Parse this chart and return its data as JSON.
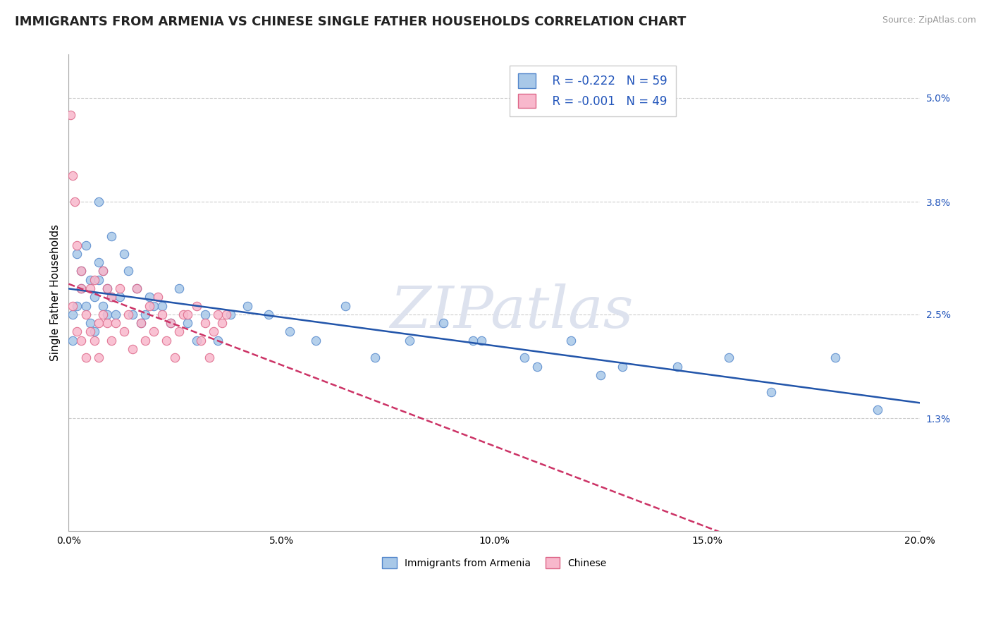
{
  "title": "IMMIGRANTS FROM ARMENIA VS CHINESE SINGLE FATHER HOUSEHOLDS CORRELATION CHART",
  "source": "Source: ZipAtlas.com",
  "ylabel": "Single Father Households",
  "xlim": [
    0.0,
    0.2
  ],
  "ylim": [
    0.0,
    0.055
  ],
  "xticks": [
    0.0,
    0.05,
    0.1,
    0.15,
    0.2
  ],
  "xtick_labels": [
    "0.0%",
    "5.0%",
    "10.0%",
    "15.0%",
    "20.0%"
  ],
  "yticks_right": [
    0.013,
    0.025,
    0.038,
    0.05
  ],
  "ytick_labels_right": [
    "1.3%",
    "2.5%",
    "3.8%",
    "5.0%"
  ],
  "grid_color": "#cccccc",
  "bg_color": "#ffffff",
  "watermark": "ZIPatlas",
  "watermark_color": "#dde2ee",
  "watermark_fontsize": 60,
  "series": [
    {
      "name": "Immigrants from Armenia",
      "color": "#a8c8e8",
      "edge_color": "#5588cc",
      "R": -0.222,
      "N": 59,
      "trend_color": "#2255aa",
      "trend_style": "solid",
      "x": [
        0.001,
        0.001,
        0.002,
        0.002,
        0.003,
        0.003,
        0.004,
        0.004,
        0.005,
        0.005,
        0.006,
        0.006,
        0.007,
        0.007,
        0.007,
        0.008,
        0.008,
        0.009,
        0.009,
        0.01,
        0.01,
        0.011,
        0.012,
        0.013,
        0.014,
        0.015,
        0.016,
        0.017,
        0.018,
        0.019,
        0.02,
        0.022,
        0.024,
        0.026,
        0.028,
        0.03,
        0.032,
        0.035,
        0.038,
        0.042,
        0.047,
        0.052,
        0.058,
        0.065,
        0.072,
        0.08,
        0.088,
        0.097,
        0.107,
        0.118,
        0.13,
        0.143,
        0.095,
        0.11,
        0.125,
        0.155,
        0.165,
        0.18,
        0.19
      ],
      "y": [
        0.025,
        0.022,
        0.032,
        0.026,
        0.03,
        0.028,
        0.033,
        0.026,
        0.029,
        0.024,
        0.027,
        0.023,
        0.038,
        0.029,
        0.031,
        0.026,
        0.03,
        0.025,
        0.028,
        0.034,
        0.027,
        0.025,
        0.027,
        0.032,
        0.03,
        0.025,
        0.028,
        0.024,
        0.025,
        0.027,
        0.026,
        0.026,
        0.024,
        0.028,
        0.024,
        0.022,
        0.025,
        0.022,
        0.025,
        0.026,
        0.025,
        0.023,
        0.022,
        0.026,
        0.02,
        0.022,
        0.024,
        0.022,
        0.02,
        0.022,
        0.019,
        0.019,
        0.022,
        0.019,
        0.018,
        0.02,
        0.016,
        0.02,
        0.014
      ]
    },
    {
      "name": "Chinese",
      "color": "#f8b8cc",
      "edge_color": "#dd6688",
      "R": -0.001,
      "N": 49,
      "trend_color": "#cc3366",
      "trend_style": "dashed",
      "x": [
        0.0005,
        0.001,
        0.001,
        0.0015,
        0.002,
        0.002,
        0.003,
        0.003,
        0.003,
        0.004,
        0.004,
        0.005,
        0.005,
        0.006,
        0.006,
        0.007,
        0.007,
        0.008,
        0.008,
        0.009,
        0.009,
        0.01,
        0.01,
        0.011,
        0.012,
        0.013,
        0.014,
        0.015,
        0.016,
        0.017,
        0.018,
        0.019,
        0.02,
        0.021,
        0.022,
        0.023,
        0.024,
        0.025,
        0.026,
        0.027,
        0.028,
        0.03,
        0.031,
        0.032,
        0.033,
        0.034,
        0.035,
        0.036,
        0.037
      ],
      "y": [
        0.048,
        0.041,
        0.026,
        0.038,
        0.023,
        0.033,
        0.022,
        0.028,
        0.03,
        0.02,
        0.025,
        0.023,
        0.028,
        0.022,
        0.029,
        0.024,
        0.02,
        0.025,
        0.03,
        0.024,
        0.028,
        0.022,
        0.027,
        0.024,
        0.028,
        0.023,
        0.025,
        0.021,
        0.028,
        0.024,
        0.022,
        0.026,
        0.023,
        0.027,
        0.025,
        0.022,
        0.024,
        0.02,
        0.023,
        0.025,
        0.025,
        0.026,
        0.022,
        0.024,
        0.02,
        0.023,
        0.025,
        0.024,
        0.025
      ]
    }
  ],
  "legend_R_color": "#2255bb",
  "legend_N_color": "#2255bb",
  "title_fontsize": 13,
  "tick_fontsize": 10,
  "ylabel_fontsize": 11,
  "marker_size": 80
}
